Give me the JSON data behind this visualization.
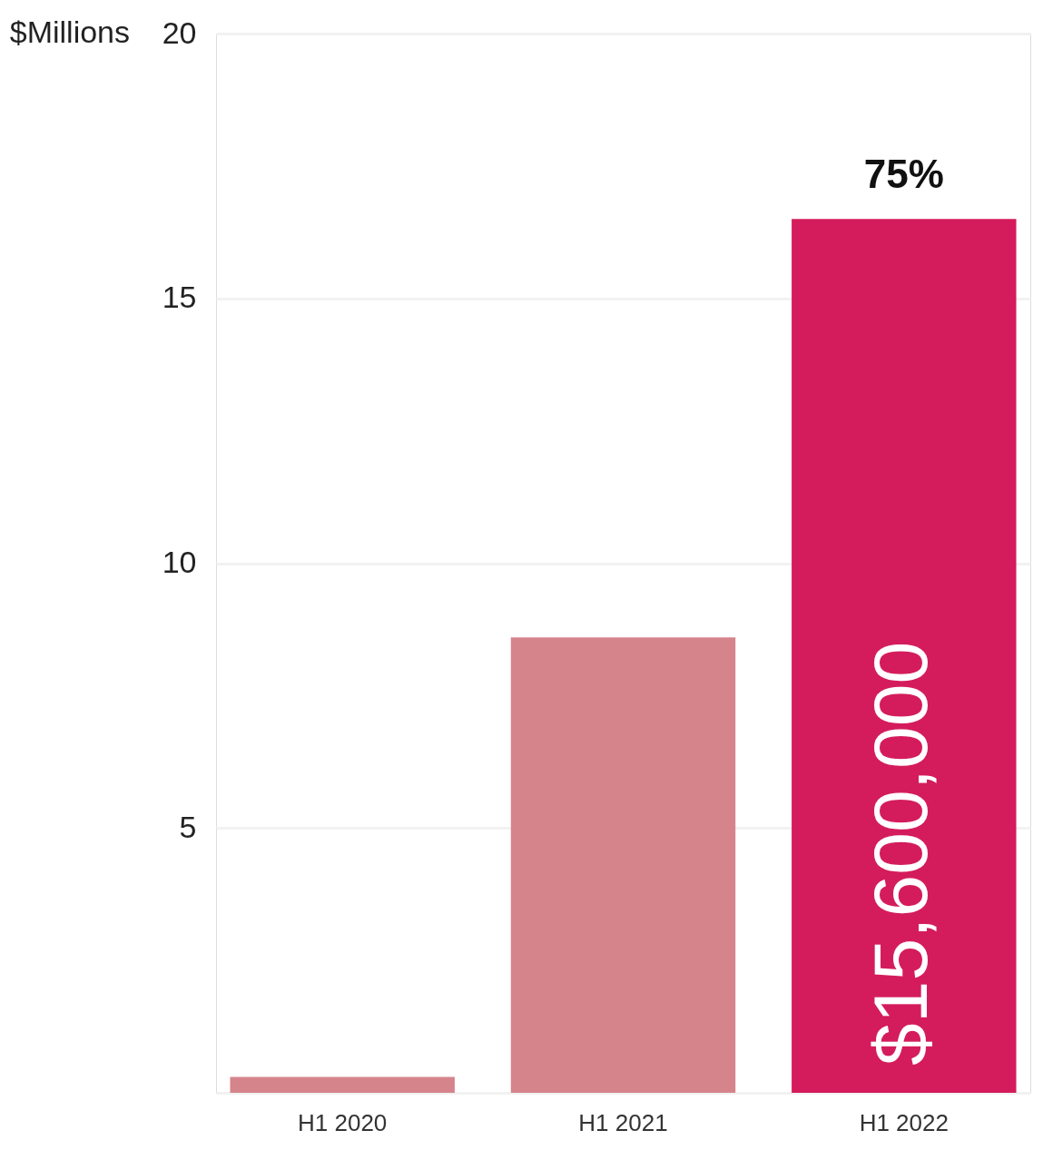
{
  "chart_data": {
    "type": "bar",
    "ylabel": "$Millions",
    "categories": [
      "H1 2020",
      "H1 2021",
      "H1 2022"
    ],
    "values": [
      0.3,
      8.6,
      16.5
    ],
    "colors": [
      "#d6848c",
      "#d6848c",
      "#d41c5c"
    ],
    "ylim": [
      0,
      20
    ],
    "yticks": [
      {
        "value": 0,
        "label": null
      },
      5,
      10,
      15,
      20
    ],
    "grid": "y",
    "annotations": [
      "75%",
      "$15,600,000"
    ]
  }
}
